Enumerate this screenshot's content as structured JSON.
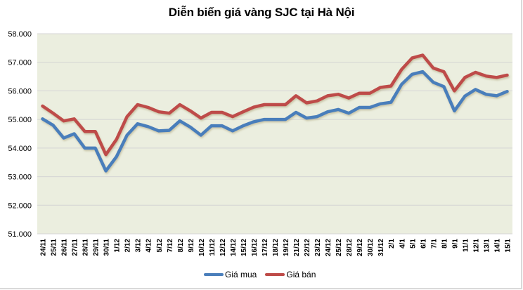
{
  "title": "Diễn biến giá vàng SJC tại Hà Nội",
  "legend": [
    {
      "label": "Giá mua",
      "color": "#4a7ebb"
    },
    {
      "label": "Giá bán",
      "color": "#be4b48"
    }
  ],
  "chart_data": {
    "type": "line",
    "title": "Diễn biến giá vàng SJC tại Hà Nội",
    "xlabel": "",
    "ylabel": "",
    "ylim": [
      51000,
      58000
    ],
    "yticks": [
      "51.000",
      "52.000",
      "53.000",
      "54.000",
      "55.000",
      "56.000",
      "57.000",
      "58.000"
    ],
    "grid": true,
    "legend_position": "bottom",
    "plot_background": "#ebeedf",
    "categories": [
      "24/11",
      "25/11",
      "26/11",
      "27/11",
      "28/11",
      "29/11",
      "30/11",
      "1/12",
      "2/12",
      "3/12",
      "4/12",
      "5/12",
      "7/12",
      "8/12",
      "9/12",
      "10/12",
      "11/12",
      "12/12",
      "14/12",
      "15/12",
      "16/12",
      "17/12",
      "18/12",
      "19/12",
      "21/12",
      "22/12",
      "23/12",
      "24/12",
      "25/12",
      "28/12",
      "29/12",
      "30/12",
      "31/12",
      "2/1",
      "4/1",
      "5/1",
      "6/1",
      "7/1",
      "8/1",
      "9/1",
      "11/1",
      "12/1",
      "13/1",
      "14/1",
      "15/1"
    ],
    "series": [
      {
        "name": "Giá mua",
        "color": "#4a7ebb",
        "values": [
          55020,
          54800,
          54350,
          54500,
          54000,
          54000,
          53200,
          53700,
          54450,
          54850,
          54750,
          54600,
          54620,
          54950,
          54730,
          54450,
          54780,
          54780,
          54600,
          54780,
          54920,
          55000,
          55000,
          55000,
          55250,
          55050,
          55100,
          55270,
          55350,
          55220,
          55420,
          55420,
          55550,
          55600,
          56230,
          56580,
          56670,
          56300,
          56150,
          55300,
          55820,
          56050,
          55880,
          55830,
          55980
        ]
      },
      {
        "name": "Giá bán",
        "color": "#be4b48",
        "values": [
          55470,
          55220,
          54950,
          55020,
          54580,
          54580,
          53770,
          54300,
          55100,
          55520,
          55420,
          55270,
          55220,
          55520,
          55300,
          55050,
          55250,
          55250,
          55100,
          55270,
          55430,
          55520,
          55520,
          55520,
          55830,
          55580,
          55650,
          55830,
          55880,
          55750,
          55920,
          55920,
          56120,
          56170,
          56750,
          57150,
          57250,
          56800,
          56670,
          56000,
          56470,
          56650,
          56520,
          56470,
          56550
        ]
      }
    ]
  }
}
